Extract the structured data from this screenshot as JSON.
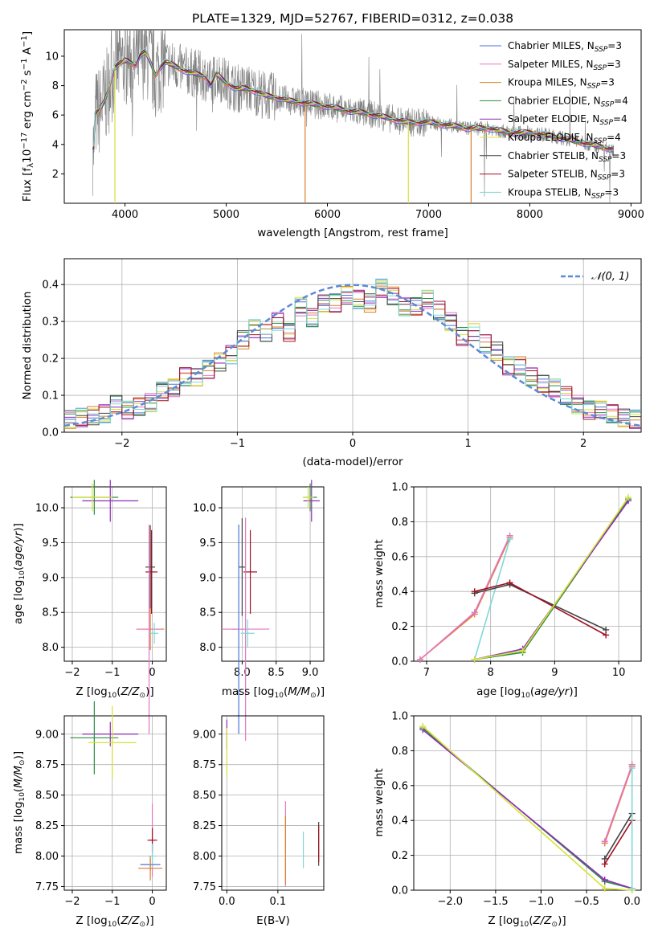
{
  "colors": {
    "chabrier_miles": "#4c72d9",
    "salpeter_miles": "#e377c2",
    "kroupa_miles": "#dd7f2a",
    "chabrier_elodie": "#2c8d3e",
    "salpeter_elodie": "#8c2fb8",
    "kroupa_elodie": "#d6e23a",
    "chabrier_stelib": "#444444",
    "salpeter_stelib": "#a01020",
    "kroupa_stelib": "#7fd8d8",
    "data": "#808080",
    "normal": "#5b8ad6"
  },
  "legend_spectrum": [
    {
      "model": "Chabrier MILES",
      "sub": "SSP",
      "n": "3",
      "color_key": "chabrier_miles"
    },
    {
      "model": "Salpeter MILES",
      "sub": "SSP",
      "n": "3",
      "color_key": "salpeter_miles"
    },
    {
      "model": "Kroupa MILES",
      "sub": "SSP",
      "n": "3",
      "color_key": "kroupa_miles"
    },
    {
      "model": "Chabrier ELODIE",
      "sub": "SSP",
      "n": "4",
      "color_key": "chabrier_elodie"
    },
    {
      "model": "Salpeter ELODIE",
      "sub": "SSP",
      "n": "4",
      "color_key": "salpeter_elodie"
    },
    {
      "model": "Kroupa ELODIE",
      "sub": "SSP",
      "n": "4",
      "color_key": "kroupa_elodie"
    },
    {
      "model": "Chabrier STELIB",
      "sub": "SSP",
      "n": "3",
      "color_key": "chabrier_stelib"
    },
    {
      "model": "Salpeter STELIB",
      "sub": "SSP",
      "n": "3",
      "color_key": "salpeter_stelib"
    },
    {
      "model": "Kroupa STELIB",
      "sub": "SSP",
      "n": "3",
      "color_key": "kroupa_stelib"
    }
  ],
  "chart_data": [
    {
      "id": "spectrum",
      "type": "line",
      "title": "PLATE=1329, MJD=52767, FIBERID=0312, z=0.038",
      "xlabel": "wavelength [Angstrom, rest frame]",
      "ylabel_parts": [
        "Flux [f",
        "λ",
        "10",
        "−17",
        " erg cm",
        "−2",
        " s",
        "−1",
        " A",
        "−1",
        "]"
      ],
      "xlim": [
        3400,
        9100
      ],
      "ylim": [
        0,
        11.8
      ],
      "xticks": [
        4000,
        5000,
        6000,
        7000,
        8000,
        9000
      ],
      "yticks": [
        2,
        4,
        6,
        8,
        10
      ],
      "model_continuum": {
        "x": [
          3700,
          3750,
          3800,
          3850,
          3900,
          3950,
          4000,
          4050,
          4100,
          4150,
          4200,
          4250,
          4300,
          4350,
          4400,
          4500,
          4600,
          4700,
          4800,
          4850,
          4900,
          5000,
          5100,
          5200,
          5300,
          5400,
          5500,
          5600,
          5700,
          5800,
          6000,
          6200,
          6400,
          6600,
          6800,
          7000,
          7200,
          7400,
          7600,
          7800,
          8000,
          8200,
          8400,
          8600,
          8800
        ],
        "y": [
          6.0,
          6.3,
          7.0,
          8.0,
          9.3,
          9.5,
          9.7,
          9.6,
          9.4,
          10.1,
          10.3,
          9.6,
          8.7,
          9.3,
          9.6,
          9.3,
          9.0,
          8.8,
          8.6,
          8.0,
          8.8,
          8.2,
          7.8,
          7.8,
          7.6,
          7.3,
          7.2,
          7.0,
          6.9,
          6.8,
          6.6,
          6.3,
          6.1,
          5.8,
          5.5,
          5.5,
          5.3,
          5.1,
          5.1,
          4.8,
          4.8,
          4.6,
          4.3,
          4.0,
          3.7
        ]
      },
      "spikes": [
        {
          "x": 3900,
          "color_key": "kroupa_elodie"
        },
        {
          "x": 5780,
          "color_key": "kroupa_miles"
        },
        {
          "x": 6800,
          "color_key": "kroupa_elodie"
        },
        {
          "x": 7420,
          "color_key": "kroupa_miles"
        }
      ]
    },
    {
      "id": "residuals",
      "type": "line",
      "xlabel": "(data-model)/error",
      "ylabel": "Normed distribution",
      "xlim": [
        -2.5,
        2.5
      ],
      "ylim": [
        0,
        0.47
      ],
      "xticks": [
        -2,
        -1,
        0,
        1,
        2
      ],
      "yticks": [
        0.0,
        0.1,
        0.2,
        0.3,
        0.4
      ],
      "legend": "N(0,1)",
      "bin_edges": [
        -2.5,
        -2.4,
        -2.3,
        -2.2,
        -2.1,
        -2.0,
        -1.9,
        -1.8,
        -1.7,
        -1.6,
        -1.5,
        -1.4,
        -1.3,
        -1.2,
        -1.1,
        -1.0,
        -0.9,
        -0.8,
        -0.7,
        -0.6,
        -0.5,
        -0.4,
        -0.3,
        -0.2,
        -0.1,
        0.0,
        0.1,
        0.2,
        0.3,
        0.4,
        0.5,
        0.6,
        0.7,
        0.8,
        0.9,
        1.0,
        1.1,
        1.2,
        1.3,
        1.4,
        1.5,
        1.6,
        1.7,
        1.8,
        1.9,
        2.0,
        2.1,
        2.2,
        2.3,
        2.4,
        2.5
      ],
      "hist_base": [
        0.035,
        0.04,
        0.045,
        0.05,
        0.075,
        0.06,
        0.07,
        0.08,
        0.11,
        0.12,
        0.15,
        0.15,
        0.17,
        0.19,
        0.21,
        0.25,
        0.28,
        0.27,
        0.3,
        0.27,
        0.34,
        0.31,
        0.35,
        0.35,
        0.37,
        0.36,
        0.35,
        0.39,
        0.37,
        0.34,
        0.34,
        0.36,
        0.33,
        0.3,
        0.26,
        0.27,
        0.24,
        0.22,
        0.18,
        0.18,
        0.15,
        0.13,
        0.12,
        0.1,
        0.075,
        0.06,
        0.06,
        0.05,
        0.04,
        0.035
      ]
    },
    {
      "id": "age_vs_Z",
      "type": "scatter",
      "xlabel": "Z [log10(Z/Z☉)]",
      "ylabel": "age  [log10(age/yr)]",
      "xlim": [
        -2.2,
        0.35
      ],
      "ylim": [
        7.8,
        10.3
      ],
      "xticks": [
        -2,
        -1,
        0
      ],
      "yticks": [
        8.0,
        8.5,
        9.0,
        9.5,
        10.0
      ],
      "points": [
        {
          "x": -0.05,
          "y": 9.15,
          "xerr": 0.12,
          "yerr": 0.6,
          "color_key": "chabrier_stelib"
        },
        {
          "x": -0.02,
          "y": 9.08,
          "xerr": 0.15,
          "yerr": 0.6,
          "color_key": "salpeter_stelib"
        },
        {
          "x": -0.05,
          "y": 8.26,
          "xerr": 0.35,
          "yerr": 0.3,
          "color_key": "kroupa_miles"
        },
        {
          "x": -0.08,
          "y": 8.26,
          "xerr": 0.3,
          "yerr": 1.5,
          "color_key": "salpeter_miles"
        },
        {
          "x": 0.05,
          "y": 8.2,
          "xerr": 0.1,
          "yerr": 0.15,
          "color_key": "kroupa_stelib"
        },
        {
          "x": -1.45,
          "y": 10.15,
          "xerr": 0.6,
          "yerr": 0.25,
          "color_key": "chabrier_elodie"
        },
        {
          "x": -1.05,
          "y": 10.1,
          "xerr": 0.7,
          "yerr": 0.3,
          "color_key": "salpeter_elodie"
        },
        {
          "x": -1.5,
          "y": 10.15,
          "xerr": 0.5,
          "yerr": 0.2,
          "color_key": "kroupa_elodie"
        }
      ]
    },
    {
      "id": "age_vs_mass",
      "type": "scatter",
      "xlabel": "mass [log10(M/M☉)]",
      "ylabel": "",
      "xlim": [
        7.7,
        9.2
      ],
      "ylim": [
        7.8,
        10.3
      ],
      "xticks": [
        8.0,
        8.5,
        9.0
      ],
      "yticks": [
        8.0,
        8.5,
        9.0,
        9.5,
        10.0
      ],
      "points": [
        {
          "x": 8.0,
          "y": 9.15,
          "xerr": 0.05,
          "yerr": 0.7,
          "color_key": "chabrier_stelib"
        },
        {
          "x": 8.12,
          "y": 9.08,
          "xerr": 0.1,
          "yerr": 0.6,
          "color_key": "salpeter_stelib"
        },
        {
          "x": 7.95,
          "y": 8.26,
          "xerr": 0.1,
          "yerr": 1.5,
          "color_key": "chabrier_miles"
        },
        {
          "x": 8.05,
          "y": 8.26,
          "xerr": 0.35,
          "yerr": 1.6,
          "color_key": "salpeter_miles"
        },
        {
          "x": 8.08,
          "y": 8.2,
          "xerr": 0.1,
          "yerr": 0.2,
          "color_key": "kroupa_stelib"
        },
        {
          "x": 9.0,
          "y": 10.15,
          "xerr": 0.1,
          "yerr": 0.2,
          "color_key": "chabrier_elodie"
        },
        {
          "x": 9.02,
          "y": 10.1,
          "xerr": 0.12,
          "yerr": 0.3,
          "color_key": "salpeter_elodie"
        },
        {
          "x": 8.97,
          "y": 10.15,
          "xerr": 0.08,
          "yerr": 0.15,
          "color_key": "kroupa_elodie"
        }
      ]
    },
    {
      "id": "weight_vs_age",
      "type": "line",
      "xlabel": "age  [log10(age/yr)]",
      "ylabel": "mass weight",
      "xlim": [
        6.8,
        10.35
      ],
      "ylim": [
        0,
        1.0
      ],
      "xticks": [
        7,
        8,
        9,
        10
      ],
      "yticks": [
        0.0,
        0.2,
        0.4,
        0.6,
        0.8,
        1.0
      ],
      "series": [
        {
          "x": [
            6.9,
            7.75,
            8.3
          ],
          "y": [
            0.01,
            0.27,
            0.71
          ],
          "color_key": "kroupa_miles"
        },
        {
          "x": [
            6.9,
            7.75,
            8.3
          ],
          "y": [
            0.01,
            0.28,
            0.72
          ],
          "color_key": "salpeter_miles"
        },
        {
          "x": [
            7.75,
            8.3
          ],
          "y": [
            0.01,
            0.7
          ],
          "color_key": "kroupa_stelib"
        },
        {
          "x": [
            7.75,
            8.3,
            9.8
          ],
          "y": [
            0.39,
            0.44,
            0.18
          ],
          "color_key": "chabrier_stelib"
        },
        {
          "x": [
            7.75,
            8.3,
            9.8
          ],
          "y": [
            0.4,
            0.45,
            0.15
          ],
          "color_key": "salpeter_stelib"
        },
        {
          "x": [
            7.75,
            8.5,
            10.15
          ],
          "y": [
            0.01,
            0.05,
            0.93
          ],
          "color_key": "chabrier_elodie"
        },
        {
          "x": [
            7.75,
            8.5,
            10.15
          ],
          "y": [
            0.01,
            0.07,
            0.92
          ],
          "color_key": "salpeter_elodie"
        },
        {
          "x": [
            7.75,
            8.5,
            10.15
          ],
          "y": [
            0.01,
            0.06,
            0.94
          ],
          "color_key": "kroupa_elodie"
        }
      ]
    },
    {
      "id": "mass_vs_Z",
      "type": "scatter",
      "xlabel": "Z [log10(Z/Z☉)]",
      "ylabel": "mass [log10(M/M☉)]",
      "xlim": [
        -2.2,
        0.35
      ],
      "ylim": [
        7.72,
        9.15
      ],
      "xticks": [
        -2,
        -1,
        0
      ],
      "yticks": [
        7.75,
        8.0,
        8.25,
        8.5,
        8.75,
        9.0
      ],
      "points": [
        {
          "x": -1.05,
          "y": 9.0,
          "xerr": 0.7,
          "yerr": 0.1,
          "color_key": "salpeter_elodie"
        },
        {
          "x": -1.45,
          "y": 8.97,
          "xerr": 0.6,
          "yerr": 0.3,
          "color_key": "chabrier_elodie"
        },
        {
          "x": -1.0,
          "y": 8.93,
          "xerr": 0.6,
          "yerr": 0.3,
          "color_key": "kroupa_elodie"
        },
        {
          "x": 0.0,
          "y": 8.13,
          "xerr": 0.05,
          "yerr": 0.3,
          "color_key": "salpeter_miles"
        },
        {
          "x": 0.0,
          "y": 8.13,
          "xerr": 0.12,
          "yerr": 0.1,
          "color_key": "salpeter_stelib"
        },
        {
          "x": 0.0,
          "y": 8.0,
          "xerr": 0.1,
          "yerr": 0.1,
          "color_key": "kroupa_stelib"
        },
        {
          "x": -0.05,
          "y": 7.93,
          "xerr": 0.25,
          "yerr": 0.05,
          "color_key": "chabrier_miles"
        },
        {
          "x": -0.05,
          "y": 7.9,
          "xerr": 0.3,
          "yerr": 0.1,
          "color_key": "kroupa_miles"
        }
      ]
    },
    {
      "id": "mass_vs_ebv",
      "type": "scatter",
      "xlabel": "E(B-V)",
      "ylabel": "",
      "xlim": [
        -0.01,
        0.19
      ],
      "ylim": [
        7.72,
        9.15
      ],
      "xticks": [
        0.0,
        0.1
      ],
      "yticks": [
        7.75,
        8.0,
        8.25,
        8.5,
        8.75,
        9.0
      ],
      "points": [
        {
          "x": 0.0,
          "y": 9.0,
          "xerr": 0,
          "yerr": 0.12,
          "color_key": "salpeter_elodie"
        },
        {
          "x": 0.0,
          "y": 8.85,
          "xerr": 0,
          "yerr": 0.2,
          "color_key": "kroupa_elodie"
        },
        {
          "x": 0.115,
          "y": 8.1,
          "xerr": 0,
          "yerr": 0.35,
          "color_key": "salpeter_miles"
        },
        {
          "x": 0.115,
          "y": 8.05,
          "xerr": 0,
          "yerr": 0.28,
          "color_key": "kroupa_miles"
        },
        {
          "x": 0.15,
          "y": 8.05,
          "xerr": 0,
          "yerr": 0.15,
          "color_key": "kroupa_stelib"
        },
        {
          "x": 0.18,
          "y": 8.1,
          "xerr": 0,
          "yerr": 0.18,
          "color_key": "chabrier_stelib"
        },
        {
          "x": 0.18,
          "y": 8.1,
          "xerr": 0,
          "yerr": 0.15,
          "color_key": "salpeter_stelib"
        }
      ]
    },
    {
      "id": "weight_vs_Z",
      "type": "line",
      "xlabel": "Z [log10(Z/Z☉)]",
      "ylabel": "mass weight",
      "xlim": [
        -2.4,
        0.1
      ],
      "ylim": [
        0,
        1.0
      ],
      "xticks": [
        -2.0,
        -1.5,
        -1.0,
        -0.5,
        0.0
      ],
      "yticks": [
        0.0,
        0.2,
        0.4,
        0.6,
        0.8,
        1.0
      ],
      "series": [
        {
          "x": [
            -2.3,
            -0.3,
            0.0
          ],
          "y": [
            0.93,
            0.05,
            0.01
          ],
          "color_key": "chabrier_elodie"
        },
        {
          "x": [
            -2.3,
            -0.3,
            0.0
          ],
          "y": [
            0.92,
            0.06,
            0.01
          ],
          "color_key": "salpeter_elodie"
        },
        {
          "x": [
            -2.3,
            -0.3,
            0.0
          ],
          "y": [
            0.94,
            0.01,
            0.0
          ],
          "color_key": "kroupa_elodie"
        },
        {
          "x": [
            -0.3,
            0.0
          ],
          "y": [
            0.27,
            0.71
          ],
          "color_key": "kroupa_miles"
        },
        {
          "x": [
            -0.3,
            0.0
          ],
          "y": [
            0.28,
            0.72
          ],
          "color_key": "salpeter_miles"
        },
        {
          "x": [
            -0.3,
            0.0
          ],
          "y": [
            0.18,
            0.44
          ],
          "color_key": "chabrier_stelib"
        },
        {
          "x": [
            -0.3,
            0.0
          ],
          "y": [
            0.15,
            0.4
          ],
          "color_key": "salpeter_stelib"
        },
        {
          "x": [
            0.0,
            0.0
          ],
          "y": [
            0.01,
            0.7
          ],
          "color_key": "kroupa_stelib"
        }
      ]
    }
  ]
}
